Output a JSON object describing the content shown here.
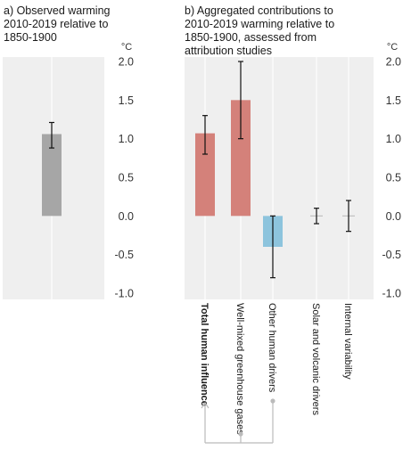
{
  "chart_data": [
    {
      "type": "bar",
      "panel": "a",
      "title_lines": [
        "a) Observed warming",
        "2010-2019 relative to",
        "1850-1900"
      ],
      "unit": "°C",
      "categories": [
        ""
      ],
      "values": [
        1.06
      ],
      "error_low": [
        0.88
      ],
      "error_high": [
        1.21
      ],
      "ylim": [
        -1.0,
        2.0
      ],
      "yticks": [
        "2.0",
        "1.5",
        "1.0",
        "0.5",
        "0.0",
        "-0.5",
        "-1.0"
      ],
      "grid": true,
      "colors": {
        "bar": "#a6a6a6",
        "background": "#efefef",
        "error": "#111111"
      }
    },
    {
      "type": "bar",
      "panel": "b",
      "title_lines": [
        "b) Aggregated contributions to",
        "2010-2019 warming relative to",
        "1850-1900, assessed from",
        "attribution studies"
      ],
      "unit": "°C",
      "categories": [
        "Total human influence",
        "Well-mixed greenhouse gases",
        "Other human drivers",
        "Solar and volcanic drivers",
        "Internal variability"
      ],
      "values": [
        1.07,
        1.5,
        -0.4,
        0.0,
        0.0
      ],
      "error_low": [
        0.8,
        1.0,
        -0.8,
        -0.1,
        -0.2
      ],
      "error_high": [
        1.3,
        2.0,
        0.0,
        0.1,
        0.2
      ],
      "ylim": [
        -1.0,
        2.0
      ],
      "yticks": [
        "2.0",
        "1.5",
        "1.0",
        "0.5",
        "0.0",
        "-0.5",
        "-1.0"
      ],
      "grid": true,
      "colors": {
        "human": "#d4817a",
        "other_human": "#8dc4dd",
        "neutral": "#bfbfbf",
        "background": "#efefef",
        "error": "#111111",
        "bracket": "#bbbbbb"
      }
    }
  ]
}
